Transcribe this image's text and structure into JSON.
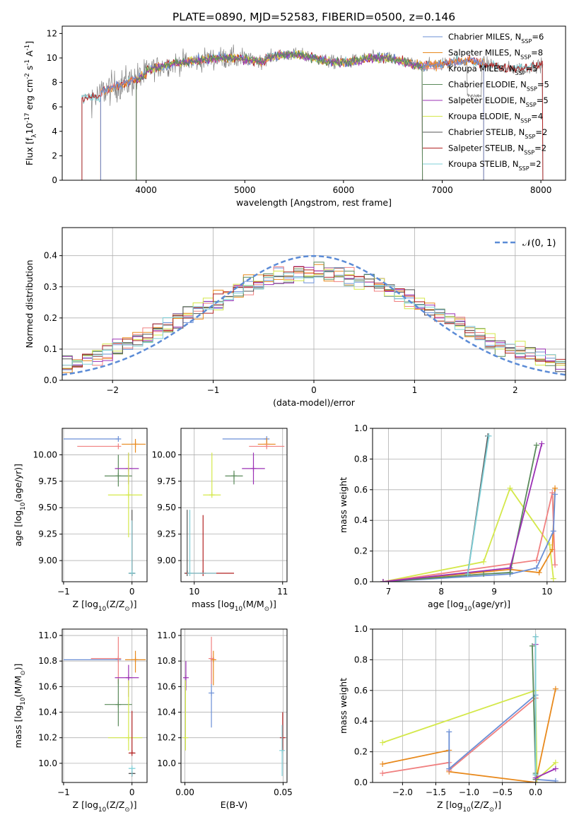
{
  "figure_title": "PLATE=0890, MJD=52583, FIBERID=0500, z=0.146",
  "colors": {
    "chabrier_miles": "#6b8fd6",
    "salpeter_miles": "#e8891c",
    "kroupa_miles": "#f08080",
    "chabrier_elodie": "#5a8a5a",
    "salpeter_elodie": "#9b30b5",
    "kroupa_elodie": "#d4e84a",
    "chabrier_stelib": "#555555",
    "salpeter_stelib": "#b22222",
    "kroupa_stelib": "#7fd0d8",
    "gaussian": "#5b8bd6",
    "gray_data": "#808080"
  },
  "chart_data": [
    {
      "id": "spectrum",
      "type": "line",
      "xlabel": "wavelength [Angstrom, rest frame]",
      "ylabel": "Flux [f$_\\lambda$10$^{-17}$ erg cm$^{-2}$ s$^{-1}$ A$^{-1}$]",
      "xlim": [
        3150,
        8250
      ],
      "ylim": [
        0,
        12.6
      ],
      "xticks": [
        4000,
        5000,
        6000,
        7000,
        8000
      ],
      "yticks": [
        0,
        2,
        4,
        6,
        8,
        10,
        12
      ],
      "legend": [
        {
          "label": "Chabrier MILES, N",
          "sub": "SSP",
          "n": "=6",
          "color": "#6b8fd6"
        },
        {
          "label": "Salpeter MILES, N",
          "sub": "SSP",
          "n": "=8",
          "color": "#e8891c"
        },
        {
          "label": "Kroupa MILES, N",
          "sub": "SSP",
          "n": "=5",
          "color": "#f08080"
        },
        {
          "label": "Chabrier ELODIE, N",
          "sub": "SSP",
          "n": "=5",
          "color": "#5a8a5a"
        },
        {
          "label": "Salpeter ELODIE, N",
          "sub": "SSP",
          "n": "=5",
          "color": "#9b30b5"
        },
        {
          "label": "Kroupa ELODIE, N",
          "sub": "SSP",
          "n": "=4",
          "color": "#d4e84a"
        },
        {
          "label": "Chabrier STELIB, N",
          "sub": "SSP",
          "n": "=2",
          "color": "#555555"
        },
        {
          "label": "Salpeter STELIB, N",
          "sub": "SSP",
          "n": "=2",
          "color": "#b22222"
        },
        {
          "label": "Kroupa STELIB, N",
          "sub": "SSP",
          "n": "=2",
          "color": "#7fd0d8"
        }
      ],
      "data_range": [
        3350,
        8020
      ],
      "model_ranges": {
        "miles": [
          3540,
          7420
        ],
        "elodie": [
          3900,
          6800
        ],
        "stelib": [
          3350,
          8020
        ]
      }
    },
    {
      "id": "residuals",
      "type": "histogram",
      "xlabel": "(data-model)/error",
      "ylabel": "Normed distribution",
      "xlim": [
        -2.5,
        2.5
      ],
      "ylim": [
        0,
        0.49
      ],
      "xticks": [
        -2,
        -1,
        0,
        1,
        2
      ],
      "yticks": [
        0.0,
        0.1,
        0.2,
        0.3,
        0.4
      ],
      "legend": "$\\mathcal{N}(0, 1)$",
      "bin_edges_start": -2.5,
      "bin_width": 0.1,
      "bins": 50
    },
    {
      "id": "age_vs_Z",
      "type": "errorbar",
      "xlabel": "Z [log$_{10}$(Z/Z$_\\odot$)]",
      "ylabel": "age  [log$_{10}$(age/yr)]",
      "xlim": [
        -1.02,
        0.22
      ],
      "ylim": [
        8.8,
        10.25
      ],
      "xticks": [
        -1,
        0
      ],
      "yticks": [
        9.0,
        9.25,
        9.5,
        9.75,
        10.0
      ],
      "points": [
        {
          "c": "chabrier_miles",
          "x": -0.2,
          "xerr": [
            0.8,
            0.0
          ],
          "y": 10.15,
          "yerr": [
            0.0,
            0.0
          ]
        },
        {
          "c": "salpeter_miles",
          "x": 0.05,
          "xerr": [
            0.2,
            0.15
          ],
          "y": 10.1,
          "yerr": [
            0.08,
            0.05
          ]
        },
        {
          "c": "kroupa_miles",
          "x": -0.2,
          "xerr": [
            0.6,
            0.0
          ],
          "y": 10.08,
          "yerr": [
            0.0,
            0.0
          ]
        },
        {
          "c": "chabrier_elodie",
          "x": -0.2,
          "xerr": [
            0.2,
            0.2
          ],
          "y": 9.8,
          "yerr": [
            0.1,
            0.2
          ]
        },
        {
          "c": "salpeter_elodie",
          "x": -0.05,
          "xerr": [
            0.2,
            0.15
          ],
          "y": 9.87,
          "yerr": [
            0.15,
            0.15
          ]
        },
        {
          "c": "kroupa_elodie",
          "x": -0.05,
          "xerr": [
            0.3,
            0.2
          ],
          "y": 9.62,
          "yerr": [
            0.4,
            0.4
          ]
        },
        {
          "c": "chabrier_stelib",
          "x": 0.0,
          "xerr": [
            0.05,
            0.05
          ],
          "y": 8.88,
          "yerr": [
            0.0,
            0.6
          ]
        },
        {
          "c": "salpeter_stelib",
          "x": 0.0,
          "xerr": [
            0.0,
            0.0
          ],
          "y": 8.88,
          "yerr": [
            0.0,
            0.5
          ]
        },
        {
          "c": "kroupa_stelib",
          "x": 0.0,
          "xerr": [
            0.05,
            0.05
          ],
          "y": 8.88,
          "yerr": [
            0.0,
            0.5
          ]
        }
      ]
    },
    {
      "id": "age_vs_mass",
      "type": "errorbar",
      "xlabel": "mass [log$_{10}$(M/M$_\\odot$)]",
      "ylabel": "",
      "xlim": [
        9.85,
        11.05
      ],
      "ylim": [
        8.8,
        10.25
      ],
      "xticks": [
        10,
        11
      ],
      "yticks": [
        9.0,
        9.25,
        9.5,
        9.75,
        10.0
      ],
      "points": [
        {
          "c": "chabrier_miles",
          "x": 10.82,
          "xerr": [
            0.5,
            0.0
          ],
          "y": 10.15,
          "yerr": [
            0.0,
            0.0
          ]
        },
        {
          "c": "salpeter_miles",
          "x": 10.82,
          "xerr": [
            0.1,
            0.1
          ],
          "y": 10.1,
          "yerr": [
            0.0,
            0.06
          ]
        },
        {
          "c": "kroupa_miles",
          "x": 10.82,
          "xerr": [
            0.2,
            0.2
          ],
          "y": 10.08,
          "yerr": [
            0.0,
            0.0
          ]
        },
        {
          "c": "chabrier_elodie",
          "x": 10.45,
          "xerr": [
            0.1,
            0.1
          ],
          "y": 9.8,
          "yerr": [
            0.08,
            0.05
          ]
        },
        {
          "c": "salpeter_elodie",
          "x": 10.67,
          "xerr": [
            0.13,
            0.13
          ],
          "y": 9.87,
          "yerr": [
            0.15,
            0.15
          ]
        },
        {
          "c": "kroupa_elodie",
          "x": 10.2,
          "xerr": [
            0.1,
            0.1
          ],
          "y": 9.62,
          "yerr": [
            0.0,
            0.4
          ]
        },
        {
          "c": "chabrier_stelib",
          "x": 9.92,
          "xerr": [
            0.0,
            0.0
          ],
          "y": 8.88,
          "yerr": [
            0.0,
            0.6
          ]
        },
        {
          "c": "salpeter_stelib",
          "x": 10.1,
          "xerr": [
            0.2,
            0.35
          ],
          "y": 8.88,
          "yerr": [
            0.0,
            0.55
          ]
        },
        {
          "c": "kroupa_stelib",
          "x": 9.95,
          "xerr": [
            0.0,
            0.3
          ],
          "y": 8.88,
          "yerr": [
            0.0,
            0.6
          ]
        }
      ]
    },
    {
      "id": "weight_vs_age",
      "type": "line",
      "xlabel": "age  [log$_{10}$(age/yr)]",
      "ylabel": "mass weight",
      "xlim": [
        6.7,
        10.35
      ],
      "ylim": [
        0,
        1.0
      ],
      "xticks": [
        7,
        8,
        9,
        10
      ],
      "yticks": [
        0.0,
        0.2,
        0.4,
        0.6,
        0.8,
        1.0
      ],
      "series": [
        {
          "c": "kroupa_elodie",
          "x": [
            6.9,
            8.8,
            9.3,
            10.05,
            10.12
          ],
          "y": [
            0.0,
            0.13,
            0.61,
            0.24,
            0.02
          ]
        },
        {
          "c": "salpeter_miles",
          "x": [
            6.9,
            9.3,
            9.85,
            10.1,
            10.15
          ],
          "y": [
            0.0,
            0.08,
            0.06,
            0.21,
            0.61
          ]
        },
        {
          "c": "kroupa_miles",
          "x": [
            6.9,
            9.8,
            10.1,
            10.15
          ],
          "y": [
            0.0,
            0.14,
            0.58,
            0.11
          ]
        },
        {
          "c": "chabrier_miles",
          "x": [
            6.9,
            9.3,
            9.8,
            10.12,
            10.15
          ],
          "y": [
            0.0,
            0.05,
            0.09,
            0.33,
            0.57
          ]
        },
        {
          "c": "chabrier_elodie",
          "x": [
            6.9,
            8.8,
            9.3,
            9.8
          ],
          "y": [
            0.0,
            0.05,
            0.06,
            0.89
          ]
        },
        {
          "c": "salpeter_elodie",
          "x": [
            6.9,
            9.3,
            9.9
          ],
          "y": [
            0.0,
            0.09,
            0.9
          ]
        },
        {
          "c": "chabrier_stelib",
          "x": [
            8.5,
            8.88
          ],
          "y": [
            0.05,
            0.95
          ]
        },
        {
          "c": "kroupa_stelib",
          "x": [
            8.5,
            8.9
          ],
          "y": [
            0.05,
            0.95
          ]
        }
      ]
    },
    {
      "id": "mass_vs_Z",
      "type": "errorbar",
      "xlabel": "Z [log$_{10}$(Z/Z$_\\odot$)]",
      "ylabel": "mass [log$_{10}$(M/M$_\\odot$)]",
      "xlim": [
        -1.02,
        0.22
      ],
      "ylim": [
        9.85,
        11.05
      ],
      "xticks": [
        -1,
        0
      ],
      "yticks": [
        10.0,
        10.2,
        10.4,
        10.6,
        10.8,
        11.0
      ],
      "points": [
        {
          "c": "chabrier_miles",
          "x": -0.2,
          "xerr": [
            0.8,
            0.0
          ],
          "y": 10.81,
          "yerr": [
            0.0,
            0.0
          ]
        },
        {
          "c": "salpeter_miles",
          "x": 0.05,
          "xerr": [
            0.15,
            0.15
          ],
          "y": 10.81,
          "yerr": [
            0.1,
            0.07
          ]
        },
        {
          "c": "kroupa_miles",
          "x": -0.2,
          "xerr": [
            0.4,
            0.0
          ],
          "y": 10.82,
          "yerr": [
            0.2,
            0.17
          ]
        },
        {
          "c": "chabrier_elodie",
          "x": -0.2,
          "xerr": [
            0.2,
            0.2
          ],
          "y": 10.46,
          "yerr": [
            0.17,
            0.2
          ]
        },
        {
          "c": "salpeter_elodie",
          "x": -0.05,
          "xerr": [
            0.2,
            0.15
          ],
          "y": 10.67,
          "yerr": [
            0.15,
            0.1
          ]
        },
        {
          "c": "kroupa_elodie",
          "x": -0.05,
          "xerr": [
            0.3,
            0.2
          ],
          "y": 10.2,
          "yerr": [
            0.1,
            0.45
          ]
        },
        {
          "c": "chabrier_stelib",
          "x": 0.0,
          "xerr": [
            0.05,
            0.05
          ],
          "y": 9.92,
          "yerr": [
            0.0,
            0.0
          ]
        },
        {
          "c": "salpeter_stelib",
          "x": 0.0,
          "xerr": [
            0.05,
            0.05
          ],
          "y": 10.08,
          "yerr": [
            0.0,
            0.33
          ]
        },
        {
          "c": "kroupa_stelib",
          "x": 0.0,
          "xerr": [
            0.05,
            0.05
          ],
          "y": 9.96,
          "yerr": [
            0.06,
            0.0
          ]
        }
      ]
    },
    {
      "id": "mass_vs_ebv",
      "type": "errorbar",
      "xlabel": "E(B-V)",
      "ylabel": "",
      "xlim": [
        -0.002,
        0.052
      ],
      "ylim": [
        9.85,
        11.05
      ],
      "xticks": [
        0.0,
        0.05
      ],
      "yticks": [
        10.0,
        10.2,
        10.4,
        10.6,
        10.8,
        11.0
      ],
      "points": [
        {
          "c": "chabrier_miles",
          "x": 0.0135,
          "xerr": [
            0,
            0
          ],
          "y": 10.55,
          "yerr": [
            0.27,
            0.27
          ]
        },
        {
          "c": "salpeter_miles",
          "x": 0.0145,
          "xerr": [
            0,
            0
          ],
          "y": 10.81,
          "yerr": [
            0.2,
            0.07
          ]
        },
        {
          "c": "kroupa_miles",
          "x": 0.0135,
          "xerr": [
            0,
            0
          ],
          "y": 10.82,
          "yerr": [
            0.2,
            0.17
          ]
        },
        {
          "c": "salpeter_elodie",
          "x": 0.0005,
          "xerr": [
            0,
            0
          ],
          "y": 10.67,
          "yerr": [
            0.1,
            0.13
          ]
        },
        {
          "c": "kroupa_elodie",
          "x": 0.0003,
          "xerr": [
            0,
            0
          ],
          "y": 10.2,
          "yerr": [
            0.1,
            0.45
          ]
        },
        {
          "c": "salpeter_stelib",
          "x": 0.0498,
          "xerr": [
            0,
            0
          ],
          "y": 10.2,
          "yerr": [
            0.1,
            0.2
          ]
        },
        {
          "c": "kroupa_stelib",
          "x": 0.0495,
          "xerr": [
            0,
            0
          ],
          "y": 10.1,
          "yerr": [
            0.2,
            0.2
          ]
        }
      ]
    },
    {
      "id": "weight_vs_Z",
      "type": "line",
      "xlabel": "Z [log$_{10}$(Z/Z$_\\odot$)]",
      "ylabel": "mass weight",
      "xlim": [
        -2.45,
        0.45
      ],
      "ylim": [
        0,
        1.0
      ],
      "xticks": [
        -2.0,
        -1.5,
        -1.0,
        -0.5,
        0.0
      ],
      "yticks": [
        0.0,
        0.2,
        0.4,
        0.6,
        0.8,
        1.0
      ],
      "series": [
        {
          "c": "kroupa_elodie",
          "x": [
            -2.3,
            0.0,
            0.02,
            0.3
          ],
          "y": [
            0.26,
            0.6,
            0.02,
            0.13
          ]
        },
        {
          "c": "salpeter_miles",
          "x": [
            -2.3,
            -1.3,
            -1.3,
            0.0,
            0.3
          ],
          "y": [
            0.12,
            0.21,
            0.07,
            0.0,
            0.61
          ]
        },
        {
          "c": "kroupa_miles",
          "x": [
            -2.3,
            -1.3,
            -1.3,
            0.0,
            0.0
          ],
          "y": [
            0.06,
            0.13,
            0.08,
            0.55,
            0.02
          ]
        },
        {
          "c": "chabrier_miles",
          "x": [
            -1.3,
            -1.3,
            0.0,
            0.0,
            0.3
          ],
          "y": [
            0.33,
            0.09,
            0.57,
            0.02,
            0.01
          ]
        },
        {
          "c": "chabrier_elodie",
          "x": [
            -0.05,
            0.0,
            0.0
          ],
          "y": [
            0.89,
            0.06,
            0.02
          ]
        },
        {
          "c": "salpeter_elodie",
          "x": [
            0.0,
            0.0,
            0.3
          ],
          "y": [
            0.9,
            0.03,
            0.09
          ]
        },
        {
          "c": "chabrier_stelib",
          "x": [
            0.0,
            0.0
          ],
          "y": [
            0.05,
            0.95
          ]
        },
        {
          "c": "kroupa_stelib",
          "x": [
            0.0,
            0.0
          ],
          "y": [
            0.05,
            0.95
          ]
        }
      ]
    }
  ]
}
